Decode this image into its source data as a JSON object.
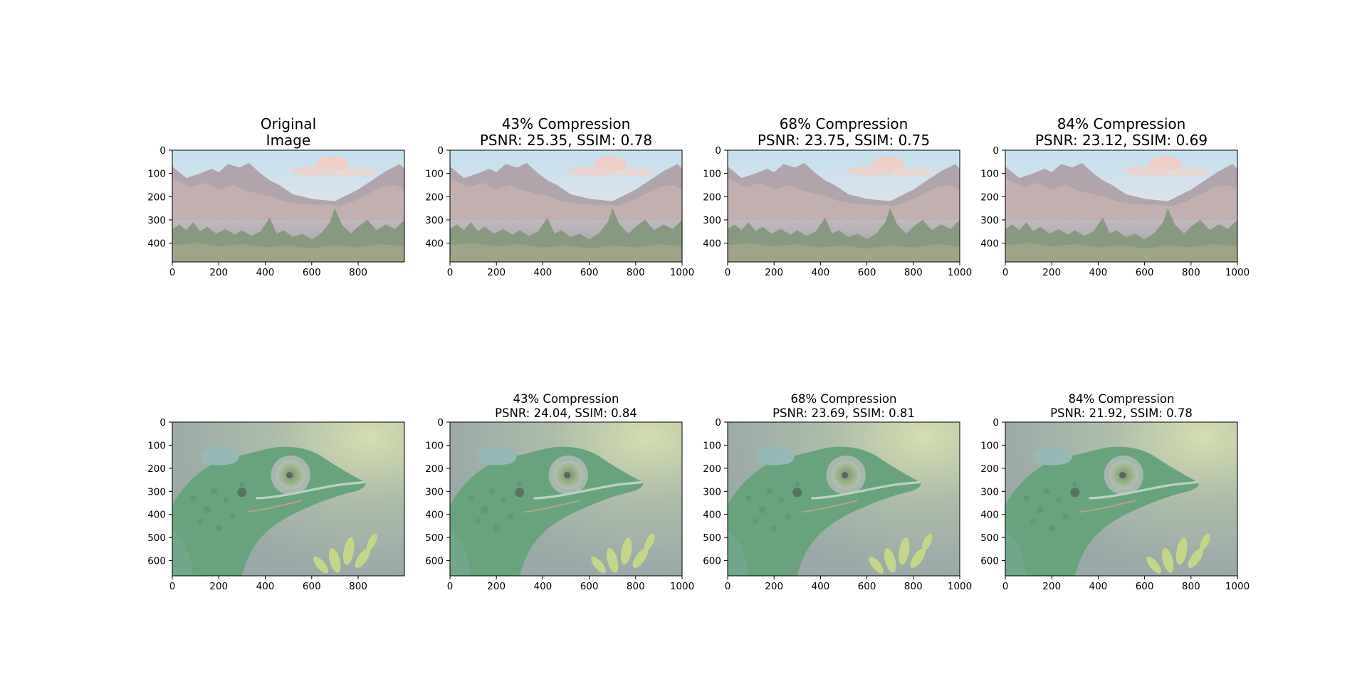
{
  "chart_data": [
    {
      "type": "image",
      "title": "Original\nImage",
      "title_size": "large",
      "scene": "landscape",
      "xlim": [
        0,
        999
      ],
      "ylim": [
        481,
        0
      ],
      "xticks": [
        0,
        200,
        400,
        600,
        800
      ],
      "yticks": [
        0,
        100,
        200,
        300,
        400
      ]
    },
    {
      "type": "image",
      "title": "43% Compression\nPSNR: 25.35, SSIM: 0.78",
      "title_size": "large",
      "scene": "landscape",
      "xlim": [
        0,
        1000
      ],
      "ylim": [
        481,
        0
      ],
      "xticks": [
        0,
        200,
        400,
        600,
        800,
        1000
      ],
      "yticks": [
        0,
        100,
        200,
        300,
        400
      ]
    },
    {
      "type": "image",
      "title": "68% Compression\nPSNR: 23.75, SSIM: 0.75",
      "title_size": "large",
      "scene": "landscape",
      "xlim": [
        0,
        1000
      ],
      "ylim": [
        481,
        0
      ],
      "xticks": [
        0,
        200,
        400,
        600,
        800,
        1000
      ],
      "yticks": [
        0,
        100,
        200,
        300,
        400
      ]
    },
    {
      "type": "image",
      "title": "84% Compression\nPSNR: 23.12, SSIM: 0.69",
      "title_size": "large",
      "scene": "landscape",
      "xlim": [
        0,
        1000
      ],
      "ylim": [
        481,
        0
      ],
      "xticks": [
        0,
        200,
        400,
        600,
        800,
        1000
      ],
      "yticks": [
        0,
        100,
        200,
        300,
        400
      ]
    },
    {
      "type": "image",
      "title": "",
      "title_size": "small",
      "scene": "chameleon",
      "xlim": [
        0,
        999
      ],
      "ylim": [
        666,
        0
      ],
      "xticks": [
        0,
        200,
        400,
        600,
        800
      ],
      "yticks": [
        0,
        100,
        200,
        300,
        400,
        500,
        600
      ]
    },
    {
      "type": "image",
      "title": "43% Compression\nPSNR: 24.04, SSIM: 0.84",
      "title_size": "small",
      "scene": "chameleon",
      "xlim": [
        0,
        1000
      ],
      "ylim": [
        666,
        0
      ],
      "xticks": [
        0,
        200,
        400,
        600,
        800,
        1000
      ],
      "yticks": [
        0,
        100,
        200,
        300,
        400,
        500,
        600
      ]
    },
    {
      "type": "image",
      "title": "68% Compression\nPSNR: 23.69, SSIM: 0.81",
      "title_size": "small",
      "scene": "chameleon",
      "xlim": [
        0,
        1000
      ],
      "ylim": [
        666,
        0
      ],
      "xticks": [
        0,
        200,
        400,
        600,
        800,
        1000
      ],
      "yticks": [
        0,
        100,
        200,
        300,
        400,
        500,
        600
      ]
    },
    {
      "type": "image",
      "title": "84% Compression\nPSNR: 21.92, SSIM: 0.78",
      "title_size": "small",
      "scene": "chameleon",
      "xlim": [
        0,
        1000
      ],
      "ylim": [
        666,
        0
      ],
      "xticks": [
        0,
        200,
        400,
        600,
        800,
        1000
      ],
      "yticks": [
        0,
        100,
        200,
        300,
        400,
        500,
        600
      ]
    }
  ]
}
